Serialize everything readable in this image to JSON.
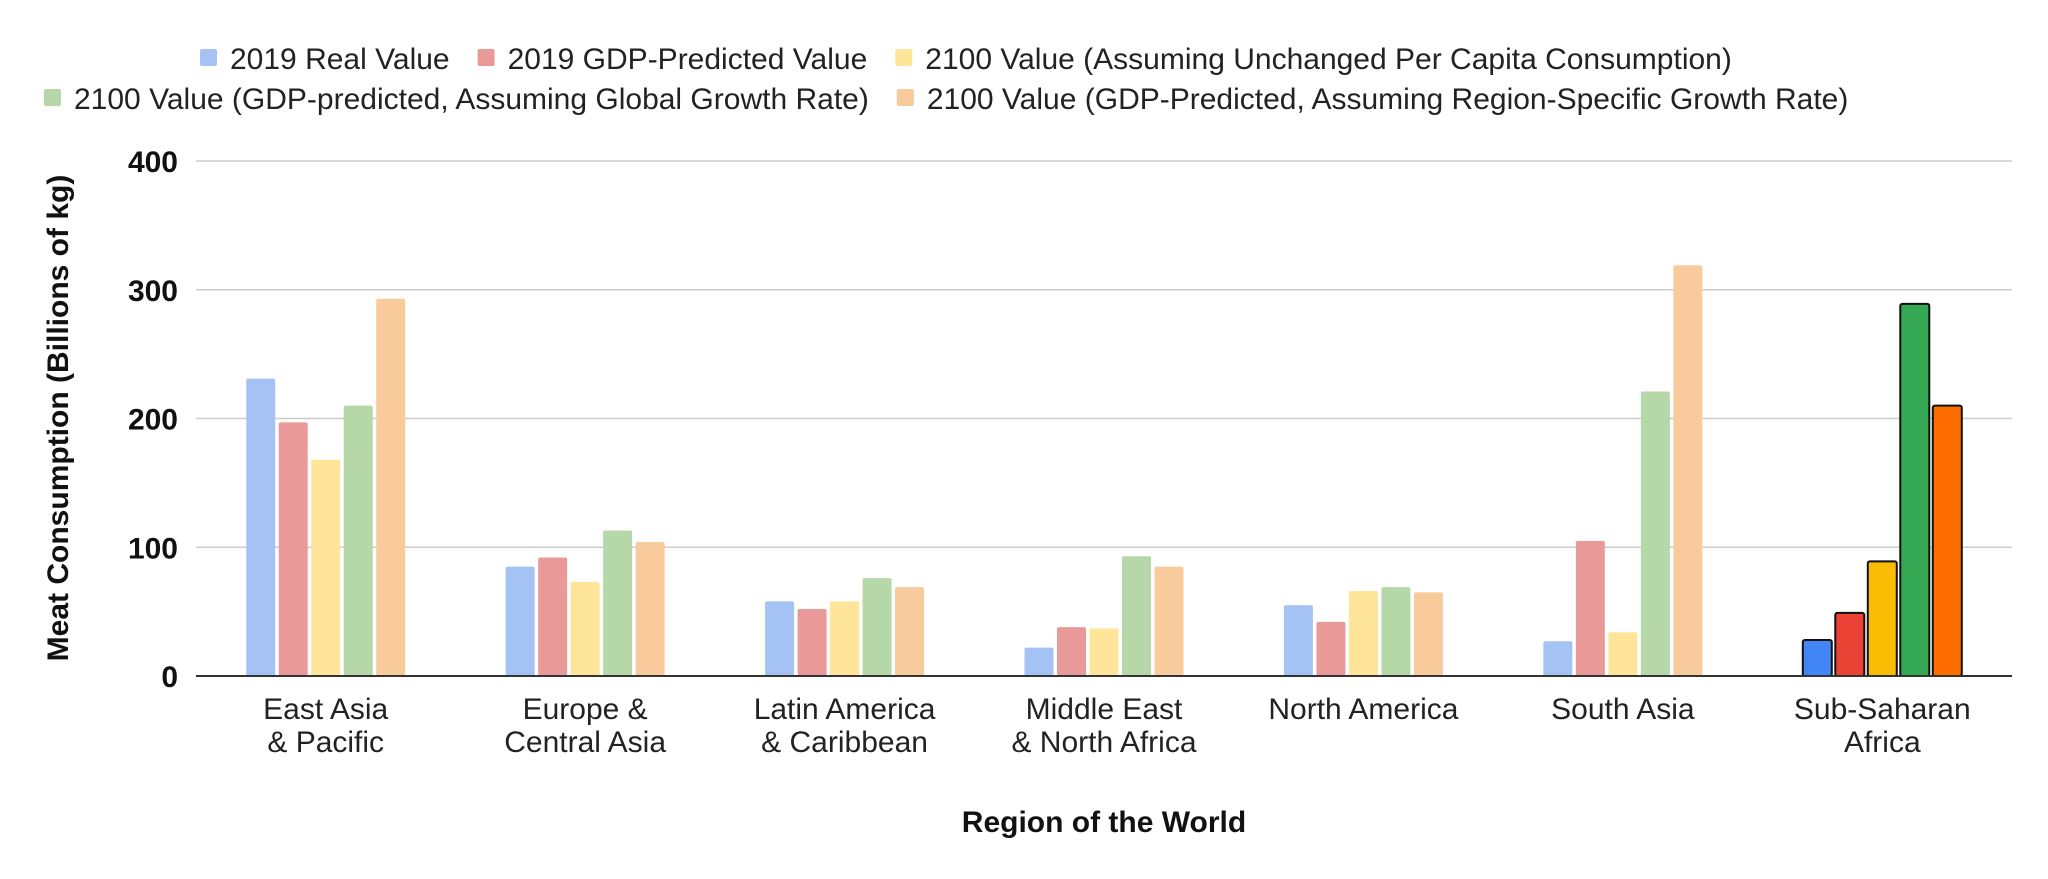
{
  "chart_data": {
    "type": "bar",
    "xlabel": "Region of the World",
    "ylabel": "Meat Consumption (Billions of kg)",
    "ylim": [
      0,
      400
    ],
    "yticks": [
      0,
      100,
      200,
      300,
      400
    ],
    "grid": true,
    "legend_position": "top",
    "categories": [
      [
        "East Asia",
        "& Pacific"
      ],
      [
        "Europe &",
        "Central Asia"
      ],
      [
        "Latin America",
        "& Caribbean"
      ],
      [
        "Middle East",
        "& North Africa"
      ],
      [
        "North America"
      ],
      [
        "South Asia"
      ],
      [
        "Sub-Saharan",
        "Africa"
      ]
    ],
    "highlighted_category_index": 6,
    "series": [
      {
        "name": "2019 Real Value",
        "color": "#a4c2f4",
        "highlight_color": "#4285f4",
        "values": [
          231,
          85,
          58,
          22,
          55,
          27,
          28
        ]
      },
      {
        "name": "2019 GDP-Predicted Value",
        "color": "#ea9999",
        "highlight_color": "#ea4335",
        "values": [
          197,
          92,
          52,
          38,
          42,
          105,
          49
        ]
      },
      {
        "name": "2100 Value (Assuming Unchanged Per Capita Consumption)",
        "color": "#ffe599",
        "highlight_color": "#fbbc04",
        "values": [
          168,
          73,
          58,
          37,
          66,
          34,
          89
        ]
      },
      {
        "name": "2100 Value (GDP-predicted, Assuming Global Growth Rate)",
        "color": "#b6d7a8",
        "highlight_color": "#34a853",
        "values": [
          210,
          113,
          76,
          93,
          69,
          221,
          289
        ]
      },
      {
        "name": "2100 Value (GDP-Predicted, Assuming Region-Specific Growth Rate)",
        "color": "#f9cb9c",
        "highlight_color": "#ff6d01",
        "values": [
          293,
          104,
          69,
          85,
          65,
          319,
          210
        ]
      }
    ]
  }
}
